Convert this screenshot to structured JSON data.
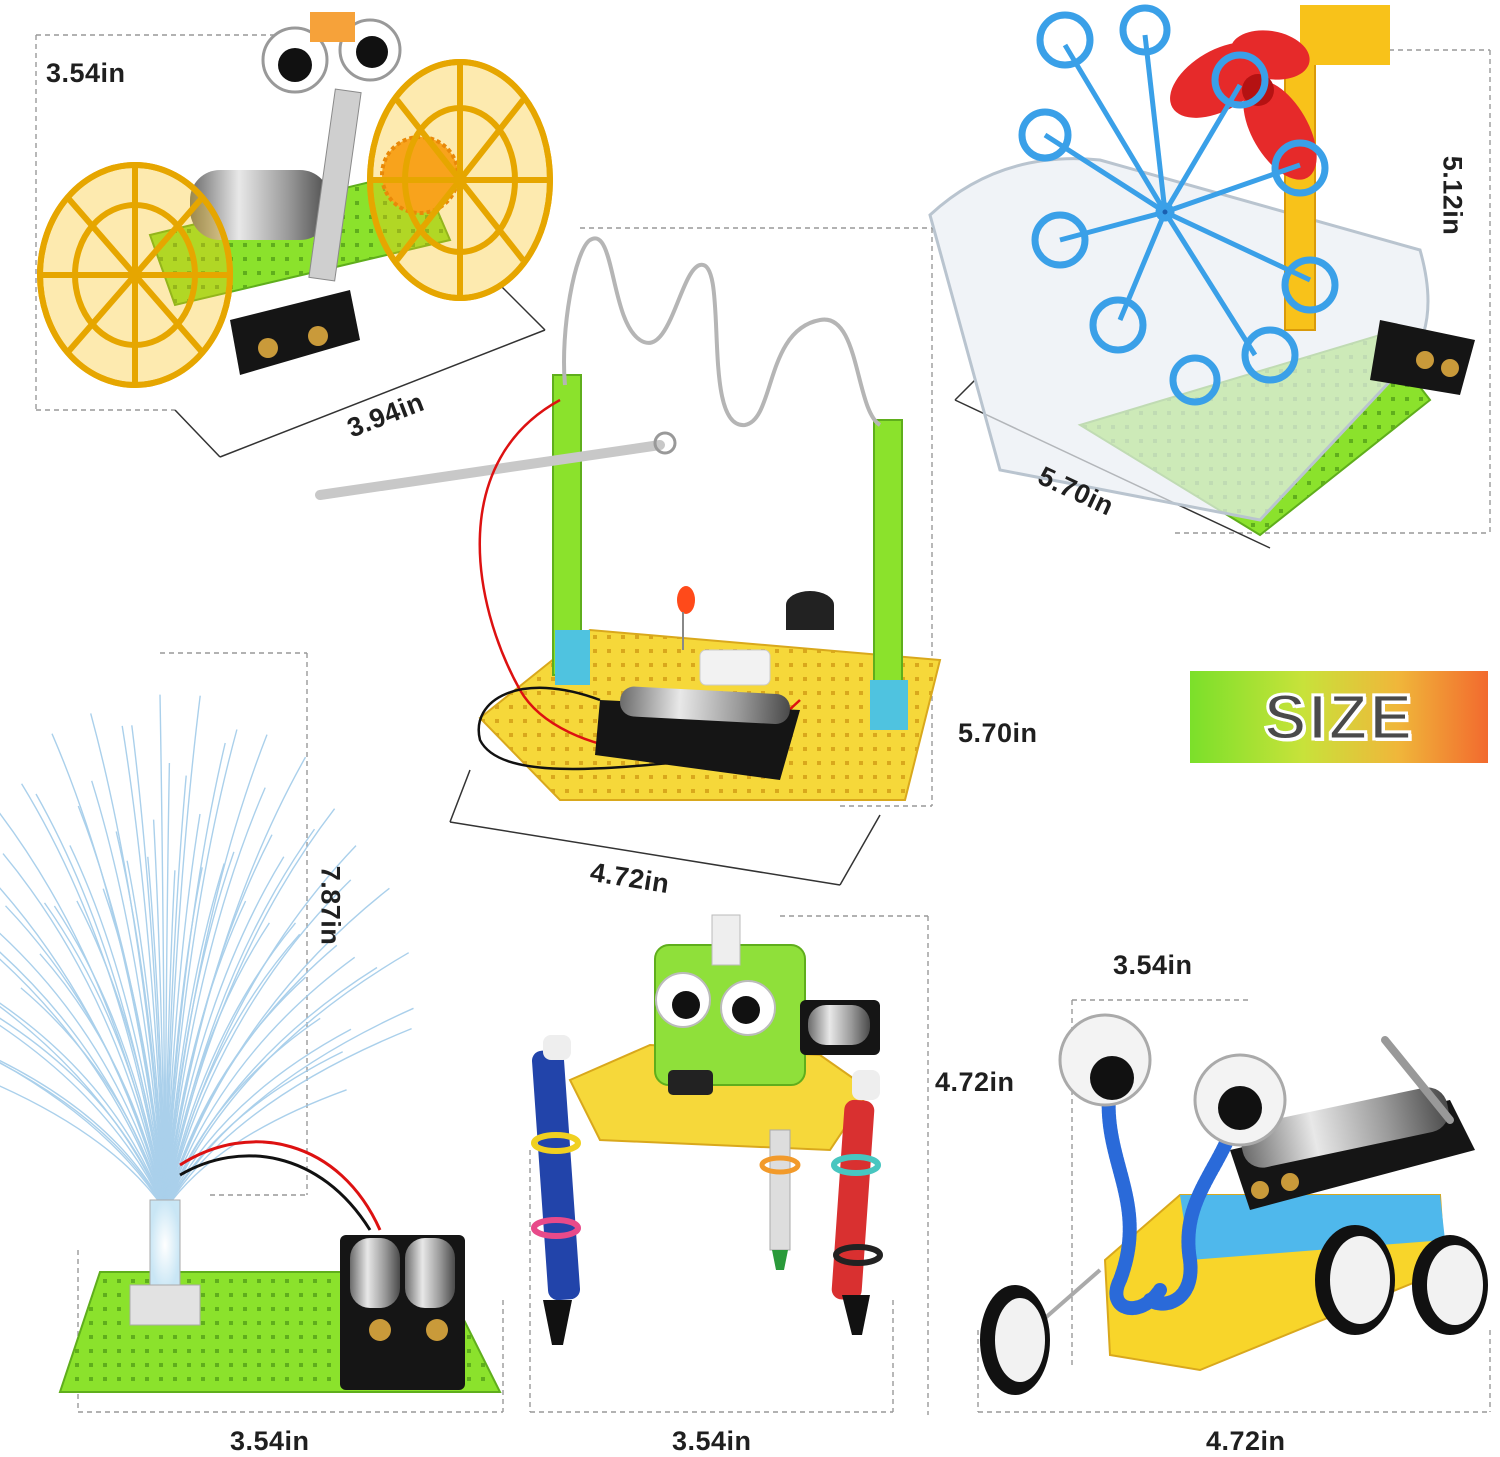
{
  "badge": {
    "text": "SIZE"
  },
  "toys": {
    "wheel_robot": {
      "height": "3.54in",
      "length": "3.94in"
    },
    "bubble_machine": {
      "height": "5.12in",
      "length": "5.70in"
    },
    "buzz_wire_game": {
      "height": "5.70in",
      "length": "4.72in"
    },
    "fiber_optic_lamp": {
      "height": "7.87in",
      "length": "3.54in"
    },
    "drawing_robot": {
      "height": "4.72in",
      "length": "3.54in"
    },
    "eyed_car": {
      "height": "3.54in",
      "length": "4.72in"
    }
  },
  "colors": {
    "breadboard_green": "#8be22c",
    "breadboard_yellow": "#f6d83a",
    "wheel_yellow": "#f8c21a",
    "bubble_blue": "#3aa0e8",
    "fan_red": "#e62a2a",
    "battery_black": "#151515",
    "fiber_blue": "#9cc8e8"
  }
}
